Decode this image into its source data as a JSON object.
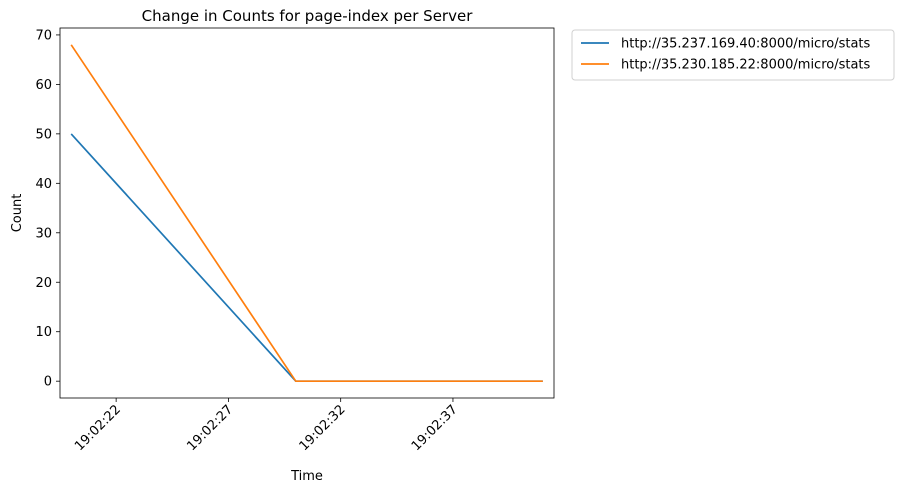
{
  "chart_data": {
    "type": "line",
    "title": "Change in Counts for page-index per Server",
    "xlabel": "Time",
    "ylabel": "Count",
    "x": [
      "19:02:20",
      "19:02:30",
      "19:02:41"
    ],
    "xlim": [
      "19:02:19.5",
      "19:02:41.5"
    ],
    "ylim": [
      -3.4,
      71.4
    ],
    "xticks": [
      "19:02:22",
      "19:02:27",
      "19:02:32",
      "19:02:37"
    ],
    "yticks": [
      0,
      10,
      20,
      30,
      40,
      50,
      60,
      70
    ],
    "grid": false,
    "legend_position": "outside-top-right",
    "series": [
      {
        "name": "http://35.237.169.40:8000/micro/stats",
        "color": "#1f77b4",
        "values": [
          50,
          0,
          0
        ]
      },
      {
        "name": "http://35.230.185.22:8000/micro/stats",
        "color": "#ff7f0e",
        "values": [
          68,
          0,
          0
        ]
      }
    ]
  }
}
